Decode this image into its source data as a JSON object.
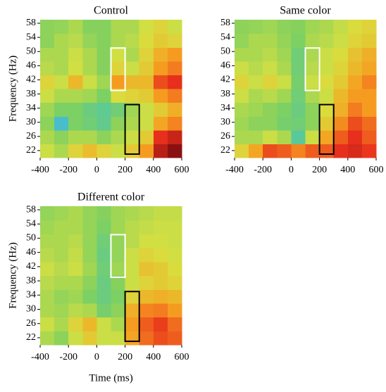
{
  "chart_data": [
    {
      "type": "heatmap",
      "title": "Control",
      "y_label": "Frequency (Hz)",
      "xlim": [
        -400,
        600
      ],
      "ylim": [
        20,
        59
      ],
      "xticks": [
        -400,
        -200,
        0,
        200,
        400,
        600
      ],
      "yticks": [
        22,
        26,
        30,
        34,
        38,
        42,
        46,
        50,
        54,
        58
      ],
      "zlim": [
        0,
        1
      ],
      "colormap": [
        "#1f4fd6",
        "#3fb6e8",
        "#55c8a0",
        "#7fd060",
        "#d8e040",
        "#f6a020",
        "#e8301c",
        "#7a0c10"
      ],
      "z": [
        [
          0.55,
          0.5,
          0.6,
          0.65,
          0.6,
          0.55,
          0.62,
          0.72,
          0.92,
          0.98
        ],
        [
          0.5,
          0.45,
          0.5,
          0.5,
          0.45,
          0.5,
          0.55,
          0.62,
          0.86,
          0.9
        ],
        [
          0.45,
          0.2,
          0.42,
          0.38,
          0.33,
          0.45,
          0.5,
          0.55,
          0.7,
          0.75
        ],
        [
          0.48,
          0.42,
          0.42,
          0.36,
          0.32,
          0.38,
          0.48,
          0.55,
          0.62,
          0.68
        ],
        [
          0.55,
          0.5,
          0.5,
          0.48,
          0.42,
          0.58,
          0.6,
          0.62,
          0.72,
          0.76
        ],
        [
          0.6,
          0.55,
          0.66,
          0.55,
          0.48,
          0.72,
          0.66,
          0.66,
          0.82,
          0.86
        ],
        [
          0.52,
          0.5,
          0.56,
          0.5,
          0.44,
          0.6,
          0.55,
          0.62,
          0.72,
          0.76
        ],
        [
          0.5,
          0.5,
          0.55,
          0.5,
          0.44,
          0.56,
          0.5,
          0.6,
          0.68,
          0.72
        ],
        [
          0.45,
          0.5,
          0.52,
          0.46,
          0.44,
          0.5,
          0.52,
          0.58,
          0.62,
          0.6
        ],
        [
          0.45,
          0.46,
          0.5,
          0.44,
          0.44,
          0.5,
          0.5,
          0.56,
          0.6,
          0.55
        ]
      ],
      "regions": [
        {
          "x": [
            100,
            200
          ],
          "y": [
            39,
            51
          ],
          "color": "#ffffff"
        },
        {
          "x": [
            200,
            300
          ],
          "y": [
            21,
            35
          ],
          "color": "#000000"
        }
      ]
    },
    {
      "type": "heatmap",
      "title": "Same color",
      "xlim": [
        -400,
        600
      ],
      "ylim": [
        20,
        59
      ],
      "xticks": [
        -400,
        -200,
        0,
        200,
        400,
        600
      ],
      "yticks": [
        22,
        26,
        30,
        34,
        38,
        42,
        46,
        50,
        54,
        58
      ],
      "zlim": [
        0,
        1
      ],
      "colormap": [
        "#1f4fd6",
        "#3fb6e8",
        "#55c8a0",
        "#7fd060",
        "#d8e040",
        "#f6a020",
        "#e8301c",
        "#7a0c10"
      ],
      "z": [
        [
          0.6,
          0.7,
          0.82,
          0.8,
          0.75,
          0.8,
          0.8,
          0.86,
          0.88,
          0.85
        ],
        [
          0.5,
          0.5,
          0.55,
          0.5,
          0.3,
          0.55,
          0.7,
          0.8,
          0.86,
          0.8
        ],
        [
          0.48,
          0.45,
          0.45,
          0.4,
          0.38,
          0.45,
          0.62,
          0.74,
          0.82,
          0.78
        ],
        [
          0.5,
          0.48,
          0.45,
          0.42,
          0.36,
          0.45,
          0.58,
          0.68,
          0.76,
          0.72
        ],
        [
          0.55,
          0.5,
          0.52,
          0.48,
          0.38,
          0.5,
          0.55,
          0.66,
          0.72,
          0.72
        ],
        [
          0.6,
          0.55,
          0.6,
          0.55,
          0.4,
          0.55,
          0.58,
          0.62,
          0.7,
          0.75
        ],
        [
          0.55,
          0.52,
          0.55,
          0.5,
          0.38,
          0.52,
          0.55,
          0.6,
          0.66,
          0.7
        ],
        [
          0.5,
          0.5,
          0.52,
          0.48,
          0.38,
          0.5,
          0.55,
          0.58,
          0.64,
          0.68
        ],
        [
          0.46,
          0.5,
          0.5,
          0.46,
          0.42,
          0.5,
          0.52,
          0.55,
          0.6,
          0.62
        ],
        [
          0.45,
          0.46,
          0.48,
          0.45,
          0.44,
          0.48,
          0.5,
          0.54,
          0.58,
          0.6
        ]
      ],
      "regions": [
        {
          "x": [
            100,
            200
          ],
          "y": [
            39,
            51
          ],
          "color": "#ffffff"
        },
        {
          "x": [
            200,
            300
          ],
          "y": [
            21,
            35
          ],
          "color": "#000000"
        }
      ]
    },
    {
      "type": "heatmap",
      "title": "Different color",
      "y_label": "Frequency (Hz)",
      "x_label": "Time (ms)",
      "xlim": [
        -400,
        600
      ],
      "ylim": [
        20,
        59
      ],
      "xticks": [
        -400,
        -200,
        0,
        200,
        400,
        600
      ],
      "yticks": [
        22,
        26,
        30,
        34,
        38,
        42,
        46,
        50,
        54,
        58
      ],
      "zlim": [
        0,
        1
      ],
      "colormap": [
        "#1f4fd6",
        "#3fb6e8",
        "#55c8a0",
        "#7fd060",
        "#d8e040",
        "#f6a020",
        "#e8301c",
        "#7a0c10"
      ],
      "z": [
        [
          0.5,
          0.45,
          0.55,
          0.62,
          0.55,
          0.55,
          0.7,
          0.78,
          0.82,
          0.8
        ],
        [
          0.55,
          0.5,
          0.6,
          0.66,
          0.55,
          0.5,
          0.72,
          0.8,
          0.84,
          0.78
        ],
        [
          0.5,
          0.48,
          0.52,
          0.5,
          0.4,
          0.45,
          0.68,
          0.75,
          0.76,
          0.72
        ],
        [
          0.5,
          0.46,
          0.48,
          0.42,
          0.36,
          0.42,
          0.6,
          0.66,
          0.68,
          0.66
        ],
        [
          0.52,
          0.5,
          0.5,
          0.45,
          0.36,
          0.44,
          0.55,
          0.6,
          0.62,
          0.6
        ],
        [
          0.55,
          0.52,
          0.55,
          0.48,
          0.38,
          0.48,
          0.55,
          0.64,
          0.62,
          0.58
        ],
        [
          0.52,
          0.5,
          0.54,
          0.46,
          0.36,
          0.46,
          0.55,
          0.6,
          0.58,
          0.56
        ],
        [
          0.5,
          0.5,
          0.52,
          0.46,
          0.38,
          0.46,
          0.52,
          0.56,
          0.56,
          0.55
        ],
        [
          0.48,
          0.5,
          0.5,
          0.46,
          0.42,
          0.48,
          0.52,
          0.54,
          0.55,
          0.55
        ],
        [
          0.46,
          0.48,
          0.5,
          0.46,
          0.44,
          0.48,
          0.5,
          0.52,
          0.54,
          0.54
        ]
      ],
      "regions": [
        {
          "x": [
            100,
            200
          ],
          "y": [
            39,
            51
          ],
          "color": "#ffffff"
        },
        {
          "x": [
            200,
            300
          ],
          "y": [
            21,
            35
          ],
          "color": "#000000"
        }
      ]
    }
  ]
}
